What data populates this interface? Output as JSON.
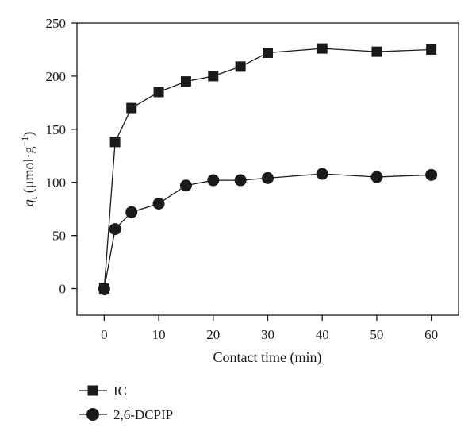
{
  "chart_data": {
    "type": "line",
    "xlabel": "Contact time (min)",
    "ylabel": "q_t (μmol·g^-1)",
    "ylabel_parts": {
      "q": "q",
      "sub": "t",
      "unit_open": " (μmol·g",
      "sup": "−1",
      "unit_close": ")"
    },
    "xlim": [
      -5,
      65
    ],
    "ylim": [
      -25,
      250
    ],
    "xticks": [
      0,
      10,
      20,
      30,
      40,
      50,
      60
    ],
    "yticks": [
      0,
      50,
      100,
      150,
      200,
      250
    ],
    "grid": false,
    "legend_position": "bottom-left",
    "series": [
      {
        "name": "IC",
        "marker": "square",
        "color": "#1a1a1a",
        "x": [
          0,
          2,
          5,
          10,
          15,
          20,
          25,
          30,
          40,
          50,
          60
        ],
        "y": [
          0,
          138,
          170,
          185,
          195,
          200,
          209,
          222,
          226,
          223,
          225
        ]
      },
      {
        "name": "2,6-DCPIP",
        "marker": "circle",
        "color": "#1a1a1a",
        "x": [
          0,
          2,
          5,
          10,
          15,
          20,
          25,
          30,
          40,
          50,
          60
        ],
        "y": [
          0,
          56,
          72,
          80,
          97,
          102,
          102,
          104,
          108,
          105,
          107
        ]
      }
    ]
  }
}
